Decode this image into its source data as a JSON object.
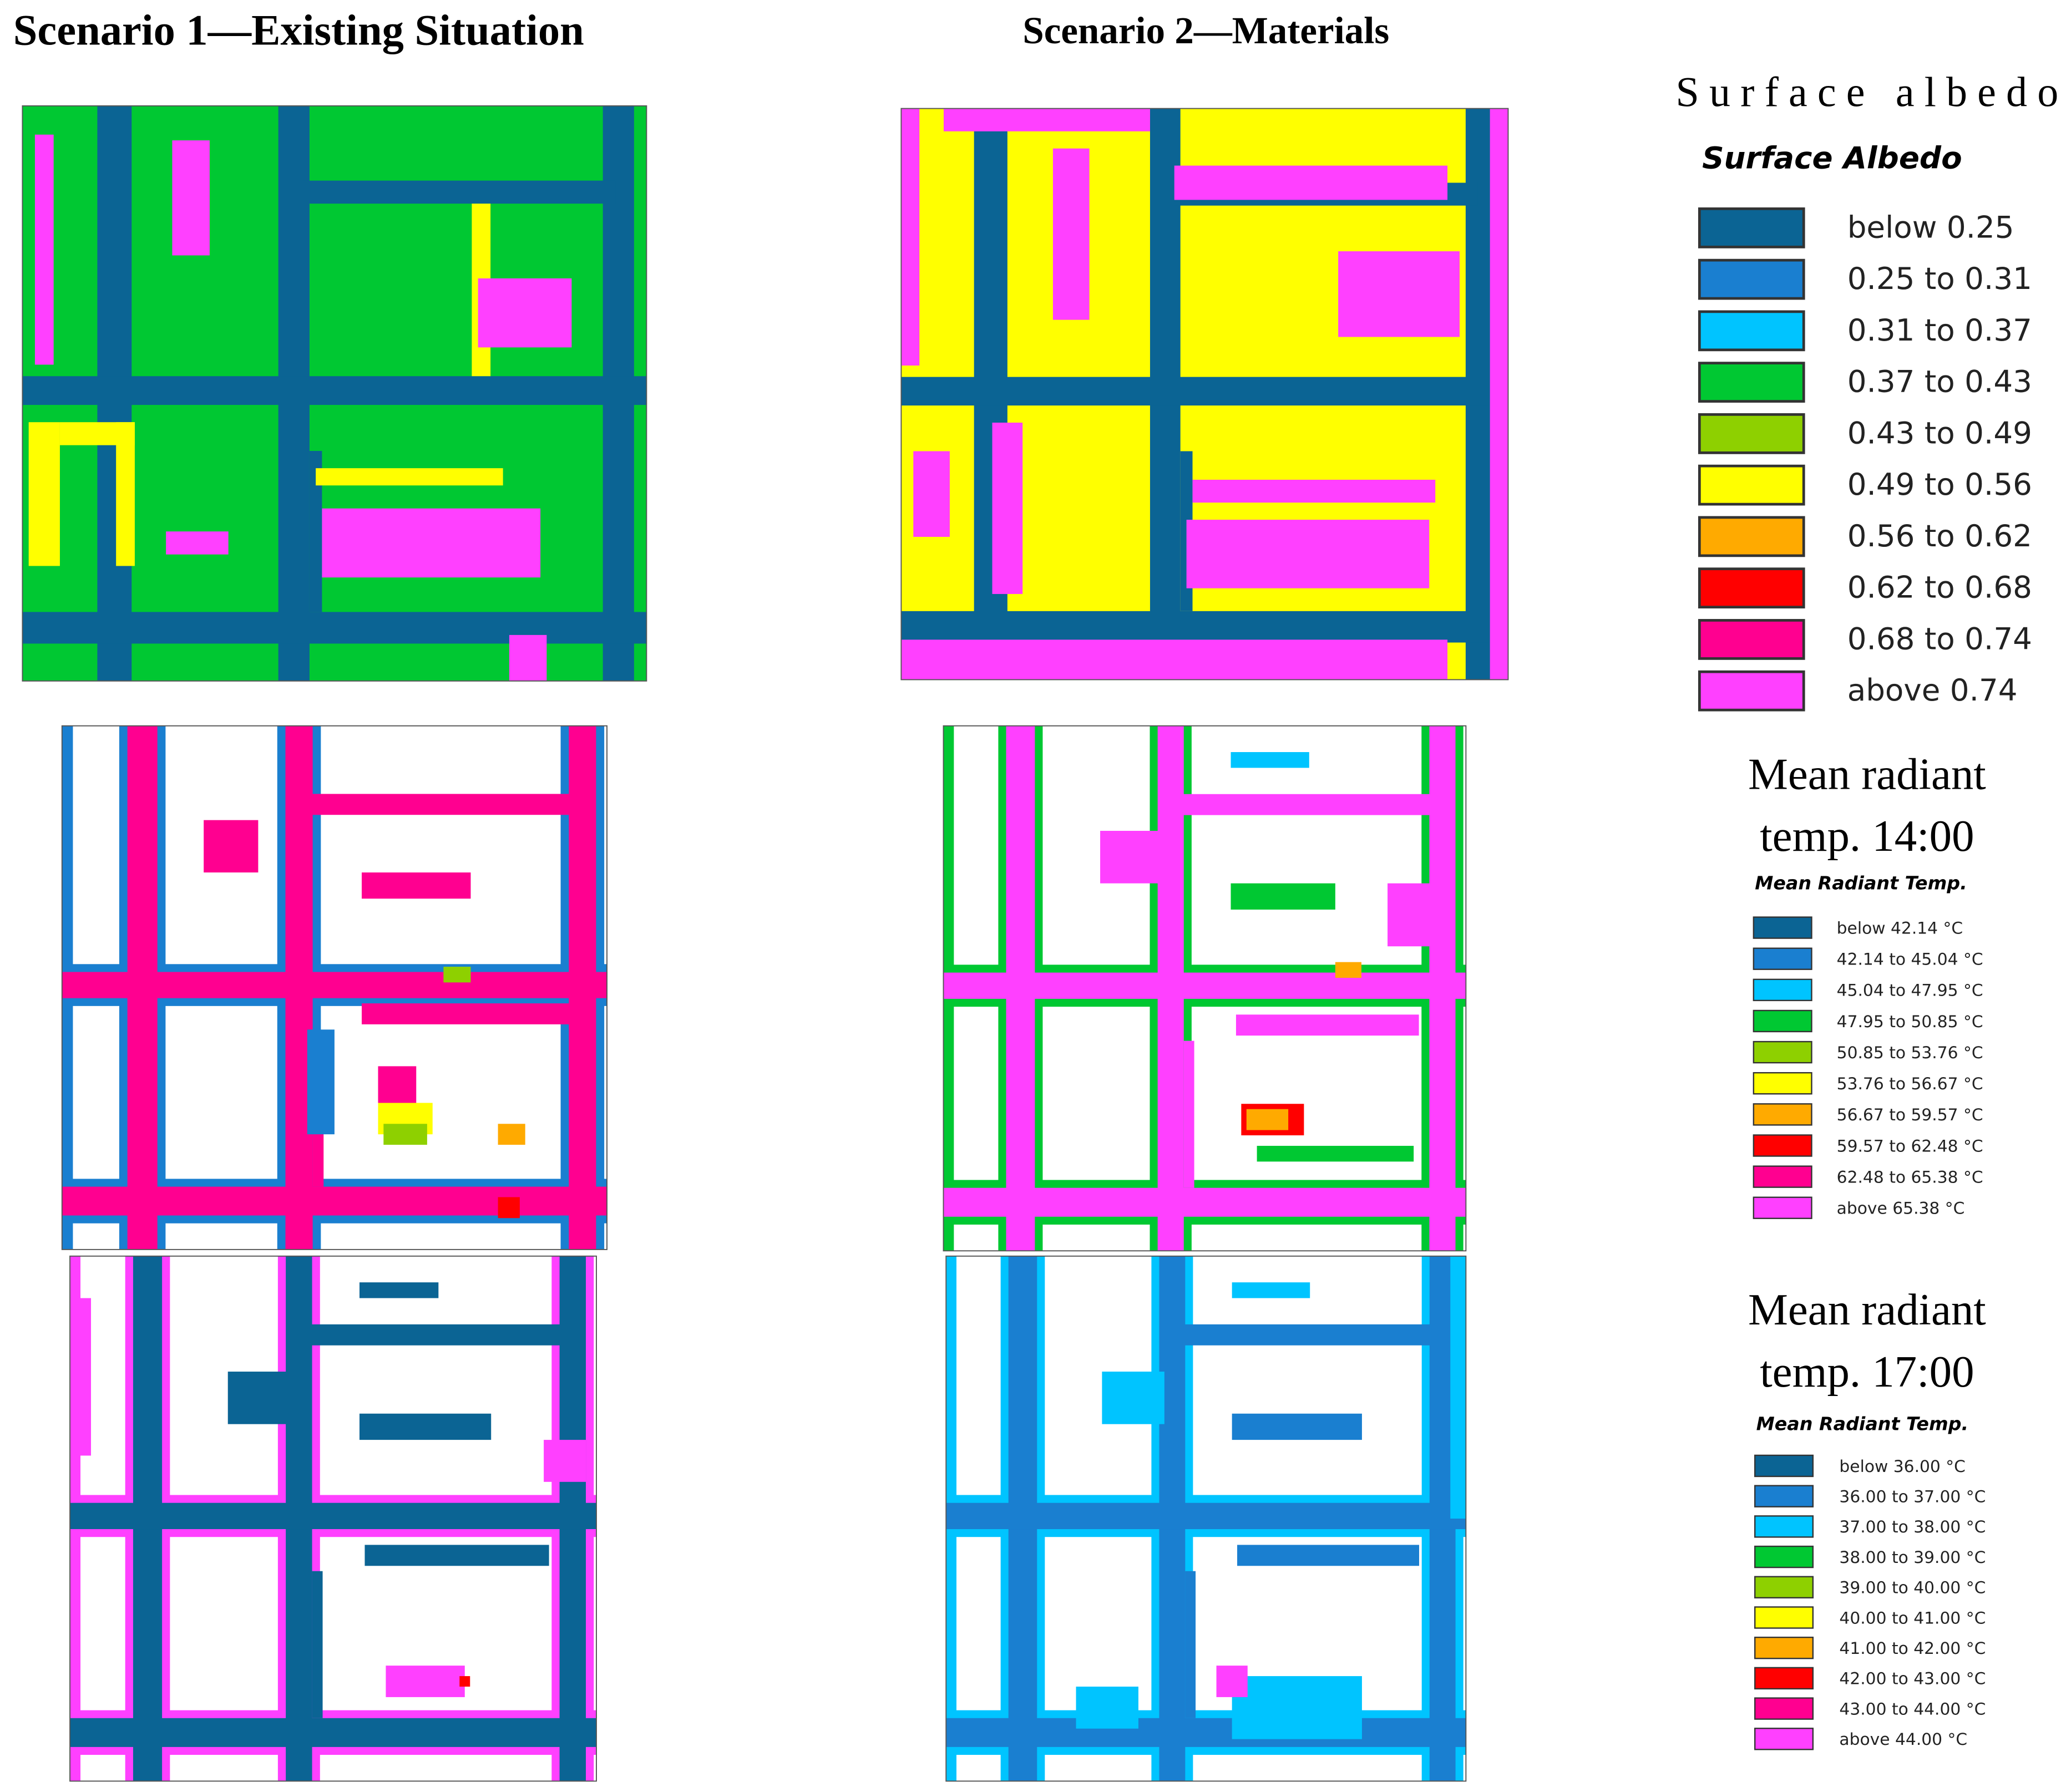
{
  "scenarios": [
    "Scenario 1—Existing Situation",
    "Scenario 2—Materials"
  ],
  "legends": [
    {
      "caption": [
        "Surface albedo"
      ],
      "title": "Surface Albedo",
      "items": [
        {
          "label": "below 0.25",
          "color": "#0b6494"
        },
        {
          "label": "0.25 to 0.31",
          "color": "#1a7fd0"
        },
        {
          "label": "0.31 to 0.37",
          "color": "#00c4ff"
        },
        {
          "label": "0.37 to 0.43",
          "color": "#00c832"
        },
        {
          "label": "0.43 to 0.49",
          "color": "#8ed000"
        },
        {
          "label": "0.49 to 0.56",
          "color": "#ffff00"
        },
        {
          "label": "0.56 to 0.62",
          "color": "#ffaa00"
        },
        {
          "label": "0.62 to 0.68",
          "color": "#ff0000"
        },
        {
          "label": "0.68 to 0.74",
          "color": "#ff0090"
        },
        {
          "label": "above 0.74",
          "color": "#ff40ff"
        }
      ]
    },
    {
      "caption": [
        "Mean radiant",
        "temp. 14:00"
      ],
      "title": "Mean Radiant Temp.",
      "items": [
        {
          "label": "below 42.14 °C",
          "color": "#0b6494"
        },
        {
          "label": "42.14 to 45.04 °C",
          "color": "#1a7fd0"
        },
        {
          "label": "45.04 to 47.95 °C",
          "color": "#00c4ff"
        },
        {
          "label": "47.95 to 50.85 °C",
          "color": "#00c832"
        },
        {
          "label": "50.85 to 53.76 °C",
          "color": "#8ed000"
        },
        {
          "label": "53.76 to 56.67 °C",
          "color": "#ffff00"
        },
        {
          "label": "56.67 to 59.57 °C",
          "color": "#ffaa00"
        },
        {
          "label": "59.57 to 62.48 °C",
          "color": "#ff0000"
        },
        {
          "label": "62.48 to 65.38 °C",
          "color": "#ff0090"
        },
        {
          "label": "above 65.38 °C",
          "color": "#ff40ff"
        }
      ]
    },
    {
      "caption": [
        "Mean radiant",
        "temp. 17:00"
      ],
      "title": "Mean Radiant Temp.",
      "items": [
        {
          "label": "below 36.00 °C",
          "color": "#0b6494"
        },
        {
          "label": "36.00 to 37.00 °C",
          "color": "#1a7fd0"
        },
        {
          "label": "37.00 to 38.00 °C",
          "color": "#00c4ff"
        },
        {
          "label": "38.00 to 39.00 °C",
          "color": "#00c832"
        },
        {
          "label": "39.00 to 40.00 °C",
          "color": "#8ed000"
        },
        {
          "label": "40.00 to 41.00 °C",
          "color": "#ffff00"
        },
        {
          "label": "41.00 to 42.00 °C",
          "color": "#ffaa00"
        },
        {
          "label": "42.00 to 43.00 °C",
          "color": "#ff0000"
        },
        {
          "label": "43.00 to 44.00 °C",
          "color": "#ff0090"
        },
        {
          "label": "above 44.00 °C",
          "color": "#ff40ff"
        }
      ]
    }
  ]
}
